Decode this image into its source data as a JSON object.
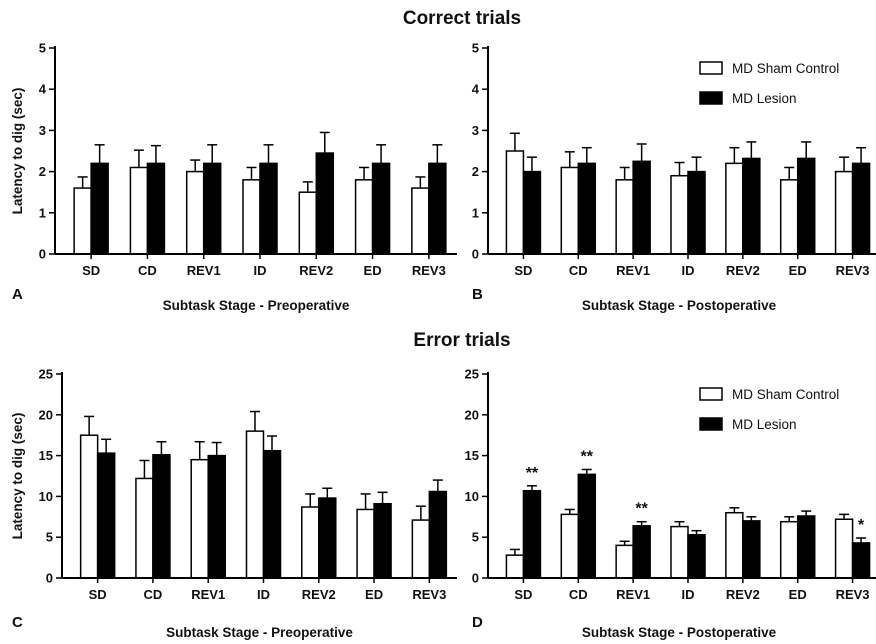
{
  "section_titles": {
    "top": "Correct trials",
    "bottom": "Error trials"
  },
  "legend": [
    {
      "label": "MD Sham Control",
      "fill": "#ffffff"
    },
    {
      "label": "MD Lesion",
      "fill": "#000000"
    }
  ],
  "colors": {
    "sham": "#ffffff",
    "lesion": "#000000",
    "stroke": "#000000"
  },
  "chart_data": [
    {
      "panel": "A",
      "type": "bar",
      "title": "",
      "xlabel": "Subtask Stage - Preoperative",
      "ylabel": "Latency to dig (sec)",
      "ylim": [
        0,
        5
      ],
      "yticks": [
        0,
        1,
        2,
        3,
        4,
        5
      ],
      "categories": [
        "SD",
        "CD",
        "REV1",
        "ID",
        "REV2",
        "ED",
        "REV3"
      ],
      "series": [
        {
          "name": "MD Sham Control",
          "values": [
            1.6,
            2.1,
            2.0,
            1.8,
            1.5,
            1.8,
            1.6
          ],
          "errors": [
            0.27,
            0.42,
            0.28,
            0.3,
            0.25,
            0.3,
            0.27
          ]
        },
        {
          "name": "MD Lesion",
          "values": [
            2.2,
            2.2,
            2.2,
            2.2,
            2.45,
            2.2,
            2.2
          ],
          "errors": [
            0.45,
            0.43,
            0.45,
            0.45,
            0.5,
            0.45,
            0.45
          ]
        }
      ],
      "significance": [
        "",
        "",
        "",
        "",
        "",
        "",
        ""
      ],
      "legend": false,
      "grid": false
    },
    {
      "panel": "B",
      "type": "bar",
      "title": "",
      "xlabel": "Subtask Stage - Postoperative",
      "ylabel": "",
      "ylim": [
        0,
        5
      ],
      "yticks": [
        0,
        1,
        2,
        3,
        4,
        5
      ],
      "categories": [
        "SD",
        "CD",
        "REV1",
        "ID",
        "REV2",
        "ED",
        "REV3"
      ],
      "series": [
        {
          "name": "MD Sham Control",
          "values": [
            2.5,
            2.1,
            1.8,
            1.9,
            2.2,
            1.8,
            2.0
          ],
          "errors": [
            0.43,
            0.38,
            0.3,
            0.32,
            0.38,
            0.3,
            0.35
          ]
        },
        {
          "name": "MD Lesion",
          "values": [
            2.0,
            2.2,
            2.25,
            2.0,
            2.32,
            2.32,
            2.2
          ],
          "errors": [
            0.35,
            0.38,
            0.42,
            0.35,
            0.4,
            0.4,
            0.38
          ]
        }
      ],
      "significance": [
        "",
        "",
        "",
        "",
        "",
        "",
        ""
      ],
      "legend": true,
      "legend_position": "top-right",
      "grid": false
    },
    {
      "panel": "C",
      "type": "bar",
      "title": "",
      "xlabel": "Subtask Stage - Preoperative",
      "ylabel": "Latency to dig (sec)",
      "ylim": [
        0,
        25
      ],
      "yticks": [
        0,
        5,
        10,
        15,
        20,
        25
      ],
      "categories": [
        "SD",
        "CD",
        "REV1",
        "ID",
        "REV2",
        "ED",
        "REV3"
      ],
      "series": [
        {
          "name": "MD Sham Control",
          "values": [
            17.5,
            12.2,
            14.5,
            18.0,
            8.7,
            8.4,
            7.1
          ],
          "errors": [
            2.3,
            2.2,
            2.2,
            2.4,
            1.6,
            1.9,
            1.7
          ]
        },
        {
          "name": "MD Lesion",
          "values": [
            15.3,
            15.1,
            15.0,
            15.6,
            9.8,
            9.1,
            10.6
          ],
          "errors": [
            1.7,
            1.6,
            1.6,
            1.8,
            1.2,
            1.4,
            1.4
          ]
        }
      ],
      "significance": [
        "",
        "",
        "",
        "",
        "",
        "",
        ""
      ],
      "legend": false,
      "grid": false
    },
    {
      "panel": "D",
      "type": "bar",
      "title": "",
      "xlabel": "Subtask Stage - Postoperative",
      "ylabel": "",
      "ylim": [
        0,
        25
      ],
      "yticks": [
        0,
        5,
        10,
        15,
        20,
        25
      ],
      "categories": [
        "SD",
        "CD",
        "REV1",
        "ID",
        "REV2",
        "ED",
        "REV3"
      ],
      "series": [
        {
          "name": "MD Sham Control",
          "values": [
            2.8,
            7.8,
            4.0,
            6.3,
            8.0,
            6.9,
            7.2
          ],
          "errors": [
            0.7,
            0.6,
            0.5,
            0.6,
            0.6,
            0.6,
            0.6
          ]
        },
        {
          "name": "MD Lesion",
          "values": [
            10.7,
            12.7,
            6.4,
            5.3,
            7.0,
            7.6,
            4.3
          ],
          "errors": [
            0.6,
            0.6,
            0.5,
            0.5,
            0.5,
            0.6,
            0.6
          ]
        }
      ],
      "significance": [
        "**",
        "**",
        "**",
        "",
        "",
        "",
        "*"
      ],
      "legend": true,
      "legend_position": "top-right",
      "grid": false
    }
  ]
}
